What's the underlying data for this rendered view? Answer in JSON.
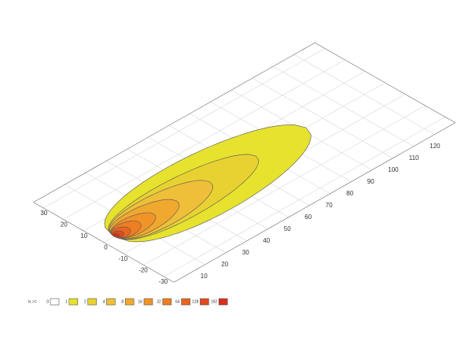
{
  "chart_data": {
    "type": "contour",
    "xlim": [
      -5,
      130
    ],
    "xticks": [
      10,
      20,
      30,
      40,
      50,
      60,
      70,
      80,
      90,
      100,
      110,
      120
    ],
    "ylim": [
      -35,
      35
    ],
    "yticks": [
      30,
      20,
      10,
      0,
      -10,
      -20,
      -30
    ],
    "grid": true,
    "legend_title": "lx >=",
    "levels": [
      0,
      1,
      2,
      4,
      8,
      16,
      32,
      64,
      128,
      192
    ],
    "colors": [
      "#ffffff",
      "#e6e22e",
      "#e8d232",
      "#efbf3a",
      "#f0a82e",
      "#f09428",
      "#ee7e22",
      "#e86620",
      "#e04a1e",
      "#d8301c"
    ],
    "reach": [
      null,
      92,
      68,
      46,
      30,
      19,
      12,
      7,
      4,
      2
    ],
    "half_width": [
      null,
      17,
      11,
      9,
      7,
      5,
      4,
      3,
      2,
      1.2
    ]
  }
}
